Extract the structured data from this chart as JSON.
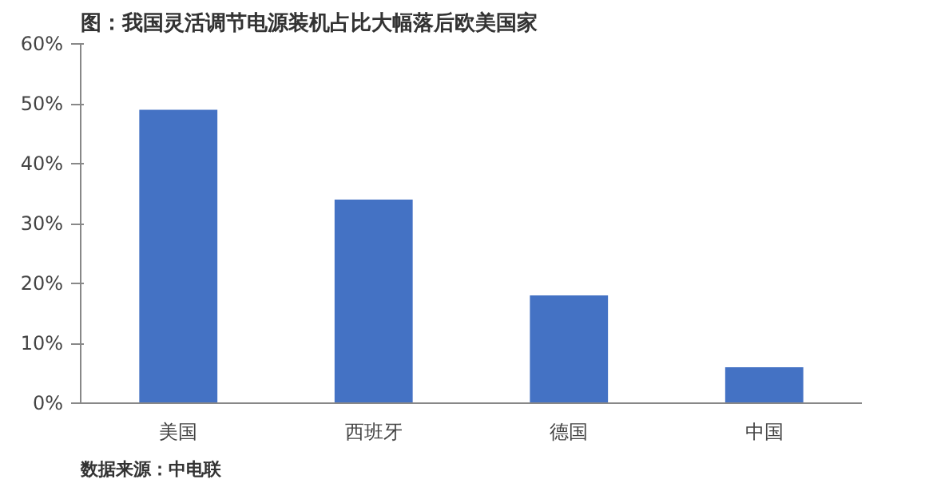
{
  "chart_data": {
    "type": "bar",
    "title": "图：我国灵活调节电源装机占比大幅落后欧美国家",
    "categories": [
      "美国",
      "西班牙",
      "德国",
      "中国"
    ],
    "values": [
      49,
      34,
      18,
      6
    ],
    "color": "#4472c4",
    "ylim": [
      0,
      60
    ],
    "yticks": [
      {
        "value": 0,
        "label": "0%"
      },
      {
        "value": 10,
        "label": "10%"
      },
      {
        "value": 20,
        "label": "20%"
      },
      {
        "value": 30,
        "label": "30%"
      },
      {
        "value": 40,
        "label": "40%"
      },
      {
        "value": 50,
        "label": "50%"
      },
      {
        "value": 60,
        "label": "60%"
      }
    ],
    "grid": false,
    "annotations": [
      "数据来源：中电联"
    ]
  }
}
